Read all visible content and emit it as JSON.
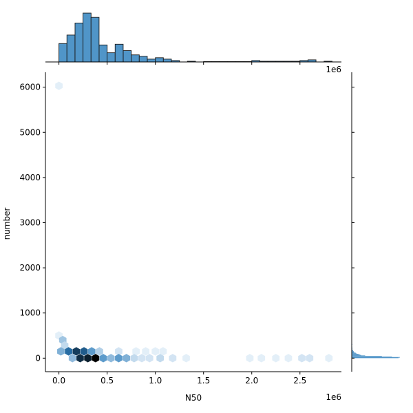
{
  "chart_data": {
    "type": "hexbin",
    "xlabel": "N50",
    "ylabel": "number",
    "x_offset_label": "1e6",
    "top_offset_label": "1e6",
    "xlim": [
      -0.14,
      2.93
    ],
    "ylim": [
      -300,
      6330
    ],
    "x_ticks": [
      0.0,
      0.5,
      1.0,
      1.5,
      2.0,
      2.5
    ],
    "x_tick_labels": [
      "0.0",
      "0.5",
      "1.0",
      "1.5",
      "2.0",
      "2.5"
    ],
    "y_ticks": [
      0,
      1000,
      2000,
      3000,
      4000,
      5000,
      6000
    ],
    "y_tick_labels": [
      "0",
      "1000",
      "2000",
      "3000",
      "4000",
      "5000",
      "6000"
    ],
    "hex_count_max": 20,
    "hexbins": [
      {
        "x": 0.0,
        "y": 6030,
        "count": 1
      },
      {
        "x": 0.0,
        "y": 500,
        "count": 1
      },
      {
        "x": 0.04,
        "y": 400,
        "count": 5
      },
      {
        "x": 0.06,
        "y": 280,
        "count": 3
      },
      {
        "x": 0.02,
        "y": 150,
        "count": 7
      },
      {
        "x": 0.1,
        "y": 150,
        "count": 13
      },
      {
        "x": 0.18,
        "y": 150,
        "count": 16
      },
      {
        "x": 0.26,
        "y": 150,
        "count": 14
      },
      {
        "x": 0.34,
        "y": 150,
        "count": 9
      },
      {
        "x": 0.42,
        "y": 150,
        "count": 4
      },
      {
        "x": 0.62,
        "y": 150,
        "count": 2
      },
      {
        "x": 0.8,
        "y": 150,
        "count": 1
      },
      {
        "x": 0.9,
        "y": 150,
        "count": 1
      },
      {
        "x": 1.0,
        "y": 150,
        "count": 1
      },
      {
        "x": 1.08,
        "y": 150,
        "count": 1
      },
      {
        "x": 0.14,
        "y": 0,
        "count": 6
      },
      {
        "x": 0.22,
        "y": 0,
        "count": 17
      },
      {
        "x": 0.3,
        "y": 0,
        "count": 18
      },
      {
        "x": 0.38,
        "y": 0,
        "count": 20
      },
      {
        "x": 0.46,
        "y": 0,
        "count": 9
      },
      {
        "x": 0.54,
        "y": 0,
        "count": 6
      },
      {
        "x": 0.62,
        "y": 0,
        "count": 9
      },
      {
        "x": 0.7,
        "y": 0,
        "count": 7
      },
      {
        "x": 0.78,
        "y": 0,
        "count": 3
      },
      {
        "x": 0.86,
        "y": 0,
        "count": 2
      },
      {
        "x": 0.94,
        "y": 0,
        "count": 2
      },
      {
        "x": 1.05,
        "y": 0,
        "count": 3
      },
      {
        "x": 1.18,
        "y": 0,
        "count": 2
      },
      {
        "x": 1.32,
        "y": 0,
        "count": 1
      },
      {
        "x": 1.98,
        "y": 0,
        "count": 1
      },
      {
        "x": 2.1,
        "y": 0,
        "count": 1
      },
      {
        "x": 2.25,
        "y": 0,
        "count": 1
      },
      {
        "x": 2.38,
        "y": 0,
        "count": 1
      },
      {
        "x": 2.52,
        "y": 0,
        "count": 2
      },
      {
        "x": 2.6,
        "y": 0,
        "count": 2
      },
      {
        "x": 2.8,
        "y": 0,
        "count": 1
      }
    ],
    "x_histogram": {
      "bin_width": 0.0833,
      "bins": [
        {
          "x0": 0.0,
          "count": 26
        },
        {
          "x0": 0.083,
          "count": 38
        },
        {
          "x0": 0.167,
          "count": 55
        },
        {
          "x0": 0.25,
          "count": 69
        },
        {
          "x0": 0.333,
          "count": 63
        },
        {
          "x0": 0.417,
          "count": 24
        },
        {
          "x0": 0.5,
          "count": 13
        },
        {
          "x0": 0.583,
          "count": 25
        },
        {
          "x0": 0.667,
          "count": 16
        },
        {
          "x0": 0.75,
          "count": 10
        },
        {
          "x0": 0.833,
          "count": 8
        },
        {
          "x0": 0.917,
          "count": 4
        },
        {
          "x0": 1.0,
          "count": 6
        },
        {
          "x0": 1.083,
          "count": 4
        },
        {
          "x0": 1.167,
          "count": 2
        },
        {
          "x0": 1.333,
          "count": 1
        },
        {
          "x0": 1.5,
          "count": 0.5
        },
        {
          "x0": 1.583,
          "count": 0.5
        },
        {
          "x0": 1.667,
          "count": 0.5
        },
        {
          "x0": 1.75,
          "count": 0.5
        },
        {
          "x0": 1.833,
          "count": 0.5
        },
        {
          "x0": 1.917,
          "count": 0.5
        },
        {
          "x0": 2.0,
          "count": 2
        },
        {
          "x0": 2.083,
          "count": 1
        },
        {
          "x0": 2.167,
          "count": 1
        },
        {
          "x0": 2.25,
          "count": 1
        },
        {
          "x0": 2.333,
          "count": 1
        },
        {
          "x0": 2.417,
          "count": 1
        },
        {
          "x0": 2.5,
          "count": 2
        },
        {
          "x0": 2.583,
          "count": 3
        },
        {
          "x0": 2.75,
          "count": 1
        }
      ],
      "max_count": 70
    },
    "y_histogram": {
      "bin_height": 12,
      "bins": [
        {
          "y0": 0,
          "count": 70
        },
        {
          "y0": 12,
          "count": 72
        },
        {
          "y0": 24,
          "count": 60
        },
        {
          "y0": 36,
          "count": 45
        },
        {
          "y0": 48,
          "count": 20
        },
        {
          "y0": 60,
          "count": 14
        },
        {
          "y0": 72,
          "count": 12
        },
        {
          "y0": 84,
          "count": 10
        },
        {
          "y0": 96,
          "count": 7
        },
        {
          "y0": 108,
          "count": 6
        },
        {
          "y0": 120,
          "count": 4
        },
        {
          "y0": 132,
          "count": 3
        },
        {
          "y0": 144,
          "count": 3
        },
        {
          "y0": 156,
          "count": 2
        },
        {
          "y0": 168,
          "count": 2
        },
        {
          "y0": 180,
          "count": 1
        },
        {
          "y0": 204,
          "count": 1
        },
        {
          "y0": 240,
          "count": 1
        },
        {
          "y0": 300,
          "count": 1
        }
      ],
      "max_count": 72
    },
    "colors": {
      "hist_fill": "#5095c8",
      "hist_edge": "#1a1a1a",
      "hex_light": "#f4f9fe",
      "hex_mid": "#2b7bba",
      "hex_dark": "#000000"
    }
  }
}
